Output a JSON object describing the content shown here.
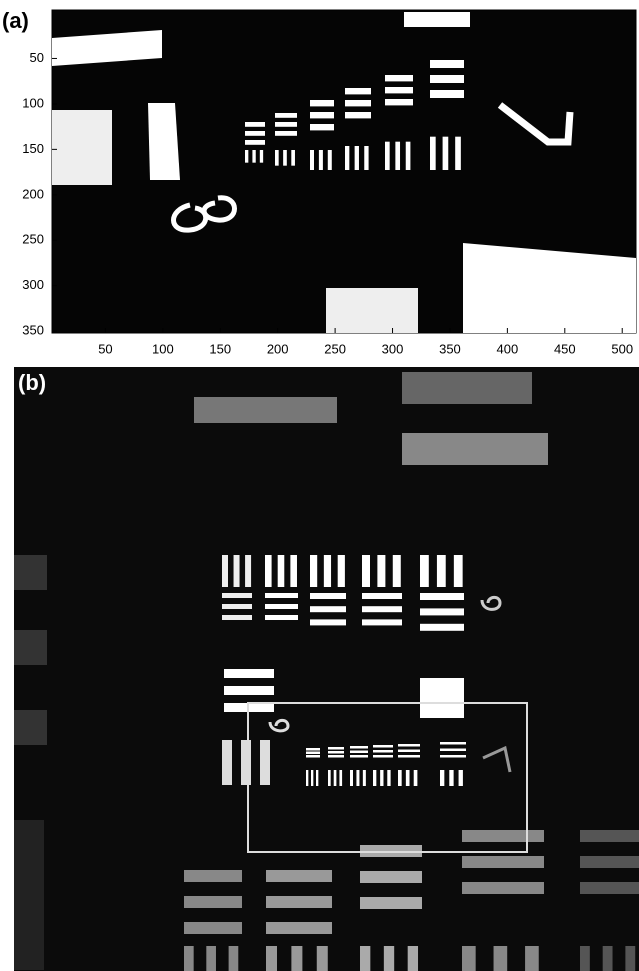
{
  "panel_a": {
    "label": "(a)",
    "xlim": [
      0,
      512
    ],
    "ylim": [
      0,
      352
    ],
    "xticks": [
      50,
      100,
      150,
      200,
      250,
      300,
      350,
      400,
      450,
      500
    ],
    "yticks": [
      50,
      100,
      150,
      200,
      250,
      300,
      350
    ]
  },
  "panel_b": {
    "label": "(b)"
  }
}
